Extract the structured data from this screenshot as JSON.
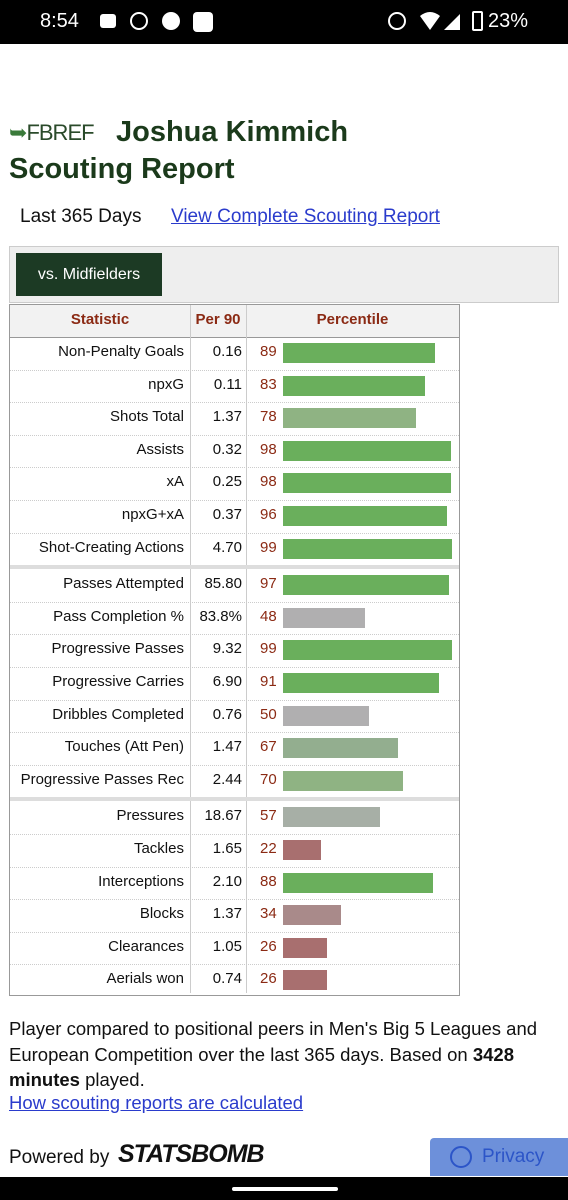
{
  "status_bar": {
    "time": "8:54",
    "battery": "23%"
  },
  "header": {
    "logo": "FBREF",
    "player": "Joshua Kimmich",
    "title": "Scouting Report"
  },
  "period": "Last 365 Days",
  "link": "View Complete Scouting Report",
  "tab": "vs. Midfielders",
  "table": {
    "columns": [
      "Statistic",
      "Per 90",
      "Percentile"
    ],
    "groups": [
      [
        {
          "statistic": "Non-Penalty Goals",
          "per90": "0.16",
          "percentile": 89
        },
        {
          "statistic": "npxG",
          "per90": "0.11",
          "percentile": 83
        },
        {
          "statistic": "Shots Total",
          "per90": "1.37",
          "percentile": 78
        },
        {
          "statistic": "Assists",
          "per90": "0.32",
          "percentile": 98
        },
        {
          "statistic": "xA",
          "per90": "0.25",
          "percentile": 98
        },
        {
          "statistic": "npxG+xA",
          "per90": "0.37",
          "percentile": 96
        },
        {
          "statistic": "Shot-Creating Actions",
          "per90": "4.70",
          "percentile": 99
        }
      ],
      [
        {
          "statistic": "Passes Attempted",
          "per90": "85.80",
          "percentile": 97
        },
        {
          "statistic": "Pass Completion %",
          "per90": "83.8%",
          "percentile": 48
        },
        {
          "statistic": "Progressive Passes",
          "per90": "9.32",
          "percentile": 99
        },
        {
          "statistic": "Progressive Carries",
          "per90": "6.90",
          "percentile": 91
        },
        {
          "statistic": "Dribbles Completed",
          "per90": "0.76",
          "percentile": 50
        },
        {
          "statistic": "Touches (Att Pen)",
          "per90": "1.47",
          "percentile": 67
        },
        {
          "statistic": "Progressive Passes Rec",
          "per90": "2.44",
          "percentile": 70
        }
      ],
      [
        {
          "statistic": "Pressures",
          "per90": "18.67",
          "percentile": 57
        },
        {
          "statistic": "Tackles",
          "per90": "1.65",
          "percentile": 22
        },
        {
          "statistic": "Interceptions",
          "per90": "2.10",
          "percentile": 88
        },
        {
          "statistic": "Blocks",
          "per90": "1.37",
          "percentile": 34
        },
        {
          "statistic": "Clearances",
          "per90": "1.05",
          "percentile": 26
        },
        {
          "statistic": "Aerials won",
          "per90": "0.74",
          "percentile": 26
        }
      ]
    ]
  },
  "note": {
    "text": "Player compared to positional peers in Men's Big 5 Leagues and European Competition over the last 365 days. Based on ",
    "minutes": "3428 minutes",
    "end": " played."
  },
  "how_link": "How scouting reports are calculated",
  "powered_by": "Powered by",
  "brand": "STATSBOMB",
  "privacy": "Privacy"
}
